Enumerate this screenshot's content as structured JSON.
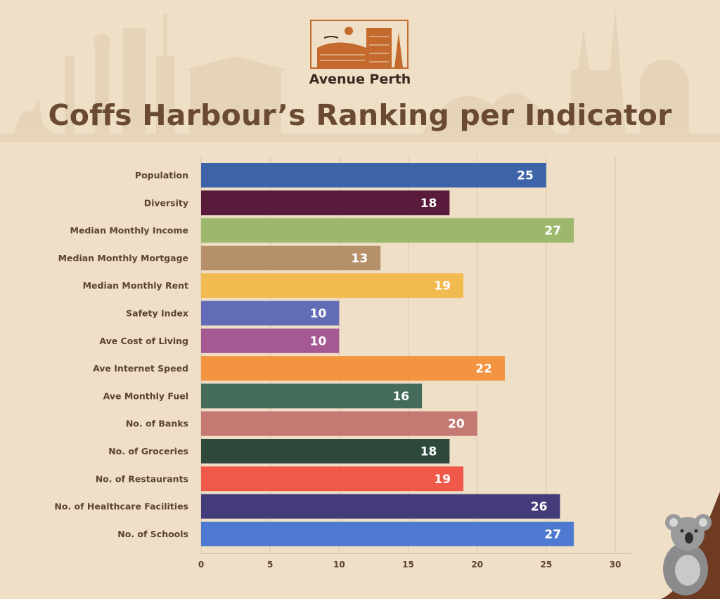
{
  "brand": {
    "name": "Avenue Perth",
    "colors": {
      "logo_accent": "#c46a2c",
      "logo_bg": "#efdfc7",
      "text_dark": "#3b2a20"
    }
  },
  "colors": {
    "background": "#efdfc7",
    "title": "#6b4a33",
    "label": "#5c4330",
    "gridline": "#d9c7ad"
  },
  "decor": {
    "skyline": "city-skyline-silhouette",
    "mascot": "koala-on-branch"
  },
  "chart_data": {
    "type": "bar",
    "orientation": "horizontal",
    "title": "Coffs Harbour’s Ranking per Indicator",
    "xlabel": "",
    "ylabel": "",
    "xlim": [
      0,
      30
    ],
    "x_ticks": [
      0,
      5,
      10,
      15,
      20,
      25,
      30
    ],
    "grid": true,
    "legend": "none",
    "categories": [
      "Population",
      "Diversity",
      "Median Monthly Income",
      "Median Monthly Mortgage",
      "Median Monthly Rent",
      "Safety Index",
      "Ave Cost of Living",
      "Ave Internet Speed",
      "Ave Monthly Fuel",
      "No. of Banks",
      "No. of Groceries",
      "No. of Restaurants",
      "No. of Healthcare Facilities",
      "No. of Schools"
    ],
    "values": [
      25,
      18,
      27,
      13,
      19,
      10,
      10,
      22,
      16,
      20,
      18,
      19,
      26,
      27
    ],
    "bar_colors": [
      "#3f63a8",
      "#5a1a3c",
      "#9cb86c",
      "#b6906a",
      "#f2bb50",
      "#636cb6",
      "#a45993",
      "#f29440",
      "#456c5a",
      "#c47972",
      "#2f4a3d",
      "#f0584a",
      "#443b7b",
      "#4d7ad0"
    ]
  }
}
